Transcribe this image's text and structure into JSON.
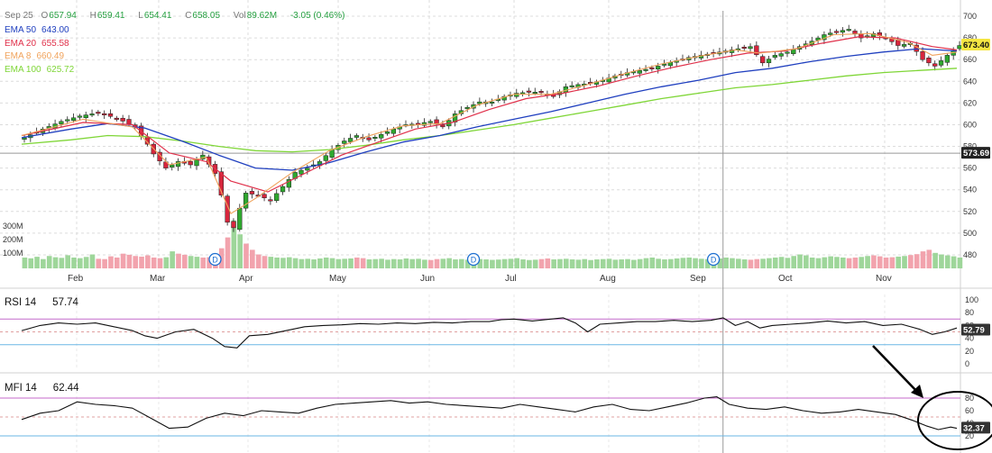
{
  "header": {
    "date": "Sep 25",
    "open_label": "O",
    "open": "657.94",
    "high_label": "H",
    "high": "659.41",
    "low_label": "L",
    "low": "654.41",
    "close_label": "C",
    "close": "658.05",
    "vol_label": "Vol",
    "volume": "89.62M",
    "change": "-3.05 (0.46%)"
  },
  "ema_legend": [
    {
      "name": "EMA 50",
      "value": "643.00",
      "color": "#1f3fbf"
    },
    {
      "name": "EMA 20",
      "value": "655.58",
      "color": "#e0304a"
    },
    {
      "name": "EMA 8",
      "value": "660.49",
      "color": "#f0a35c"
    },
    {
      "name": "EMA 100",
      "value": "625.72",
      "color": "#7fd637"
    }
  ],
  "volume_axis": [
    "300M",
    "200M",
    "100M"
  ],
  "price_badges": {
    "last": "673.40",
    "crosshair": "573.69"
  },
  "dividend_marker": "D",
  "rsi_panel": {
    "title": "RSI 14",
    "value": "57.74",
    "badge": "52.79",
    "ticks": [
      "100",
      "80",
      "60",
      "40",
      "20",
      "0"
    ]
  },
  "mfi_panel": {
    "title": "MFI 14",
    "value": "62.44",
    "badge": "32.37",
    "ticks": [
      "80",
      "60",
      "40",
      "20"
    ]
  },
  "colors": {
    "up": "#2fa82f",
    "down": "#d7263d",
    "vol_up": "#9ed69a",
    "vol_down": "#f2a3ad",
    "annotation": "#000000"
  },
  "chart_data": {
    "type": "candlestick",
    "x_ticks": [
      "Feb",
      "Mar",
      "Apr",
      "May",
      "Jun",
      "Jul",
      "Aug",
      "Sep",
      "Oct",
      "Nov"
    ],
    "y_ticks": [
      480,
      500,
      520,
      540,
      560,
      580,
      600,
      620,
      640,
      660,
      680,
      700
    ],
    "ylim": [
      470,
      705
    ],
    "price_path": [
      [
        0,
        588
      ],
      [
        3,
        596
      ],
      [
        6,
        603
      ],
      [
        9,
        608
      ],
      [
        12,
        611
      ],
      [
        15,
        606
      ],
      [
        18,
        598
      ],
      [
        20,
        582
      ],
      [
        21,
        573
      ],
      [
        23,
        560
      ],
      [
        25,
        566
      ],
      [
        27,
        563
      ],
      [
        29,
        572
      ],
      [
        31,
        555
      ],
      [
        32,
        535
      ],
      [
        33,
        510
      ],
      [
        34,
        505
      ],
      [
        35,
        523
      ],
      [
        36,
        537
      ],
      [
        38,
        535
      ],
      [
        40,
        530
      ],
      [
        42,
        543
      ],
      [
        44,
        556
      ],
      [
        46,
        560
      ],
      [
        48,
        566
      ],
      [
        50,
        577
      ],
      [
        52,
        585
      ],
      [
        54,
        590
      ],
      [
        56,
        586
      ],
      [
        58,
        591
      ],
      [
        60,
        596
      ],
      [
        62,
        600
      ],
      [
        64,
        601
      ],
      [
        66,
        603
      ],
      [
        68,
        598
      ],
      [
        70,
        610
      ],
      [
        72,
        616
      ],
      [
        74,
        621
      ],
      [
        76,
        621
      ],
      [
        78,
        626
      ],
      [
        80,
        629
      ],
      [
        82,
        630
      ],
      [
        84,
        630
      ],
      [
        86,
        626
      ],
      [
        88,
        635
      ],
      [
        90,
        637
      ],
      [
        92,
        638
      ],
      [
        94,
        641
      ],
      [
        96,
        645
      ],
      [
        98,
        648
      ],
      [
        100,
        650
      ],
      [
        102,
        652
      ],
      [
        104,
        656
      ],
      [
        106,
        659
      ],
      [
        108,
        662
      ],
      [
        110,
        664
      ],
      [
        112,
        666
      ],
      [
        114,
        668
      ],
      [
        116,
        670
      ],
      [
        118,
        672
      ],
      [
        120,
        657
      ],
      [
        122,
        664
      ],
      [
        124,
        667
      ],
      [
        126,
        672
      ],
      [
        128,
        677
      ],
      [
        130,
        683
      ],
      [
        132,
        686
      ],
      [
        134,
        688
      ],
      [
        136,
        680
      ],
      [
        138,
        684
      ],
      [
        140,
        680
      ],
      [
        142,
        673
      ],
      [
        144,
        675
      ],
      [
        146,
        660
      ],
      [
        148,
        654
      ],
      [
        150,
        664
      ],
      [
        152,
        673
      ]
    ],
    "ema8_path": [
      [
        0,
        590
      ],
      [
        10,
        605
      ],
      [
        18,
        598
      ],
      [
        24,
        563
      ],
      [
        30,
        570
      ],
      [
        34,
        518
      ],
      [
        38,
        532
      ],
      [
        44,
        556
      ],
      [
        50,
        576
      ],
      [
        56,
        589
      ],
      [
        62,
        599
      ],
      [
        68,
        601
      ],
      [
        74,
        618
      ],
      [
        80,
        628
      ],
      [
        86,
        628
      ],
      [
        92,
        637
      ],
      [
        98,
        647
      ],
      [
        104,
        656
      ],
      [
        110,
        663
      ],
      [
        116,
        669
      ],
      [
        120,
        666
      ],
      [
        126,
        670
      ],
      [
        132,
        683
      ],
      [
        138,
        684
      ],
      [
        144,
        676
      ],
      [
        148,
        664
      ],
      [
        152,
        667
      ]
    ],
    "ema20_path": [
      [
        0,
        590
      ],
      [
        10,
        602
      ],
      [
        18,
        600
      ],
      [
        24,
        574
      ],
      [
        30,
        566
      ],
      [
        34,
        548
      ],
      [
        40,
        538
      ],
      [
        46,
        555
      ],
      [
        52,
        572
      ],
      [
        58,
        584
      ],
      [
        64,
        596
      ],
      [
        70,
        602
      ],
      [
        76,
        614
      ],
      [
        82,
        624
      ],
      [
        88,
        629
      ],
      [
        94,
        636
      ],
      [
        100,
        645
      ],
      [
        106,
        653
      ],
      [
        112,
        660
      ],
      [
        118,
        666
      ],
      [
        124,
        668
      ],
      [
        130,
        675
      ],
      [
        136,
        681
      ],
      [
        142,
        680
      ],
      [
        148,
        672
      ],
      [
        152,
        669
      ]
    ],
    "ema50_path": [
      [
        0,
        588
      ],
      [
        8,
        596
      ],
      [
        14,
        601
      ],
      [
        20,
        597
      ],
      [
        26,
        585
      ],
      [
        32,
        572
      ],
      [
        38,
        560
      ],
      [
        44,
        558
      ],
      [
        50,
        565
      ],
      [
        56,
        575
      ],
      [
        62,
        584
      ],
      [
        68,
        590
      ],
      [
        74,
        598
      ],
      [
        80,
        605
      ],
      [
        86,
        612
      ],
      [
        92,
        620
      ],
      [
        98,
        628
      ],
      [
        104,
        635
      ],
      [
        110,
        641
      ],
      [
        116,
        648
      ],
      [
        122,
        652
      ],
      [
        128,
        658
      ],
      [
        134,
        663
      ],
      [
        140,
        667
      ],
      [
        146,
        670
      ],
      [
        152,
        668
      ]
    ],
    "ema100_path": [
      [
        0,
        582
      ],
      [
        8,
        586
      ],
      [
        14,
        590
      ],
      [
        20,
        589
      ],
      [
        26,
        585
      ],
      [
        32,
        580
      ],
      [
        38,
        576
      ],
      [
        44,
        575
      ],
      [
        50,
        577
      ],
      [
        56,
        581
      ],
      [
        62,
        586
      ],
      [
        68,
        590
      ],
      [
        74,
        595
      ],
      [
        80,
        600
      ],
      [
        86,
        606
      ],
      [
        92,
        612
      ],
      [
        98,
        618
      ],
      [
        104,
        624
      ],
      [
        110,
        629
      ],
      [
        116,
        634
      ],
      [
        122,
        637
      ],
      [
        128,
        641
      ],
      [
        134,
        645
      ],
      [
        140,
        648
      ],
      [
        146,
        650
      ],
      [
        152,
        652
      ]
    ],
    "volume_millions": [
      70,
      65,
      75,
      60,
      80,
      72,
      68,
      85,
      70,
      66,
      74,
      90,
      62,
      60,
      78,
      70,
      95,
      88,
      80,
      76,
      84,
      70,
      66,
      72,
      110,
      95,
      88,
      80,
      75,
      70,
      72,
      68,
      130,
      200,
      310,
      220,
      160,
      120,
      90,
      80,
      75,
      70,
      68,
      72,
      66,
      60,
      62,
      58,
      64,
      70,
      66,
      60,
      62,
      64,
      70,
      66,
      58,
      60,
      62,
      56,
      60,
      58,
      64,
      60,
      62,
      56,
      54,
      60,
      62,
      66,
      58,
      60,
      56,
      62,
      60,
      58,
      55,
      57,
      60,
      62,
      66,
      58,
      54,
      56,
      60,
      64,
      58,
      60,
      62,
      58,
      56,
      60,
      54,
      58,
      60,
      62,
      56,
      58,
      60,
      55,
      60,
      66,
      70,
      62,
      58,
      60,
      64,
      68,
      70,
      66,
      62,
      60,
      58,
      64,
      70,
      66,
      62,
      58,
      56,
      60,
      62,
      66,
      70,
      74,
      68,
      80,
      90,
      84,
      70,
      66,
      72,
      78,
      74,
      70,
      66,
      70,
      74,
      80,
      84,
      78,
      70,
      72,
      76,
      80,
      86,
      92,
      110,
      120,
      100,
      90,
      84,
      78,
      70
    ],
    "dividends_x": [
      31,
      73,
      112
    ],
    "crosshair_x": 114,
    "crosshair_price": 573.69,
    "rsi": {
      "levels": [
        70,
        50,
        30
      ],
      "ylim": [
        0,
        100
      ],
      "path": [
        [
          0,
          52
        ],
        [
          3,
          60
        ],
        [
          6,
          64
        ],
        [
          9,
          62
        ],
        [
          12,
          64
        ],
        [
          15,
          58
        ],
        [
          18,
          52
        ],
        [
          20,
          44
        ],
        [
          22,
          40
        ],
        [
          25,
          50
        ],
        [
          28,
          54
        ],
        [
          31,
          40
        ],
        [
          33,
          27
        ],
        [
          35,
          25
        ],
        [
          37,
          44
        ],
        [
          40,
          46
        ],
        [
          43,
          52
        ],
        [
          46,
          58
        ],
        [
          49,
          60
        ],
        [
          52,
          61
        ],
        [
          55,
          63
        ],
        [
          58,
          62
        ],
        [
          61,
          64
        ],
        [
          64,
          63
        ],
        [
          67,
          65
        ],
        [
          70,
          64
        ],
        [
          73,
          66
        ],
        [
          76,
          66
        ],
        [
          78,
          69
        ],
        [
          80,
          70
        ],
        [
          83,
          67
        ],
        [
          86,
          70
        ],
        [
          88,
          72
        ],
        [
          90,
          64
        ],
        [
          92,
          50
        ],
        [
          94,
          62
        ],
        [
          97,
          64
        ],
        [
          100,
          66
        ],
        [
          103,
          66
        ],
        [
          106,
          68
        ],
        [
          109,
          66
        ],
        [
          112,
          68
        ],
        [
          114,
          72
        ],
        [
          116,
          60
        ],
        [
          118,
          66
        ],
        [
          120,
          56
        ],
        [
          122,
          60
        ],
        [
          125,
          62
        ],
        [
          128,
          64
        ],
        [
          131,
          67
        ],
        [
          134,
          64
        ],
        [
          137,
          66
        ],
        [
          140,
          60
        ],
        [
          143,
          62
        ],
        [
          146,
          54
        ],
        [
          148,
          46
        ],
        [
          150,
          50
        ],
        [
          152,
          56
        ]
      ]
    },
    "mfi": {
      "levels": [
        80,
        50,
        20
      ],
      "ylim": [
        0,
        100
      ],
      "path": [
        [
          0,
          46
        ],
        [
          3,
          56
        ],
        [
          6,
          60
        ],
        [
          9,
          74
        ],
        [
          12,
          70
        ],
        [
          15,
          68
        ],
        [
          18,
          64
        ],
        [
          21,
          48
        ],
        [
          24,
          32
        ],
        [
          27,
          34
        ],
        [
          30,
          48
        ],
        [
          33,
          56
        ],
        [
          36,
          52
        ],
        [
          39,
          60
        ],
        [
          42,
          58
        ],
        [
          45,
          56
        ],
        [
          48,
          64
        ],
        [
          51,
          70
        ],
        [
          54,
          72
        ],
        [
          57,
          74
        ],
        [
          60,
          76
        ],
        [
          63,
          72
        ],
        [
          66,
          74
        ],
        [
          69,
          70
        ],
        [
          72,
          68
        ],
        [
          75,
          66
        ],
        [
          78,
          64
        ],
        [
          81,
          70
        ],
        [
          84,
          66
        ],
        [
          87,
          62
        ],
        [
          90,
          58
        ],
        [
          93,
          66
        ],
        [
          96,
          70
        ],
        [
          99,
          62
        ],
        [
          102,
          60
        ],
        [
          105,
          66
        ],
        [
          108,
          72
        ],
        [
          111,
          80
        ],
        [
          113,
          82
        ],
        [
          115,
          70
        ],
        [
          118,
          64
        ],
        [
          121,
          62
        ],
        [
          124,
          66
        ],
        [
          127,
          60
        ],
        [
          130,
          56
        ],
        [
          133,
          58
        ],
        [
          136,
          62
        ],
        [
          139,
          58
        ],
        [
          142,
          54
        ],
        [
          145,
          44
        ],
        [
          147,
          36
        ],
        [
          149,
          30
        ],
        [
          151,
          34
        ],
        [
          152,
          32
        ]
      ]
    }
  }
}
